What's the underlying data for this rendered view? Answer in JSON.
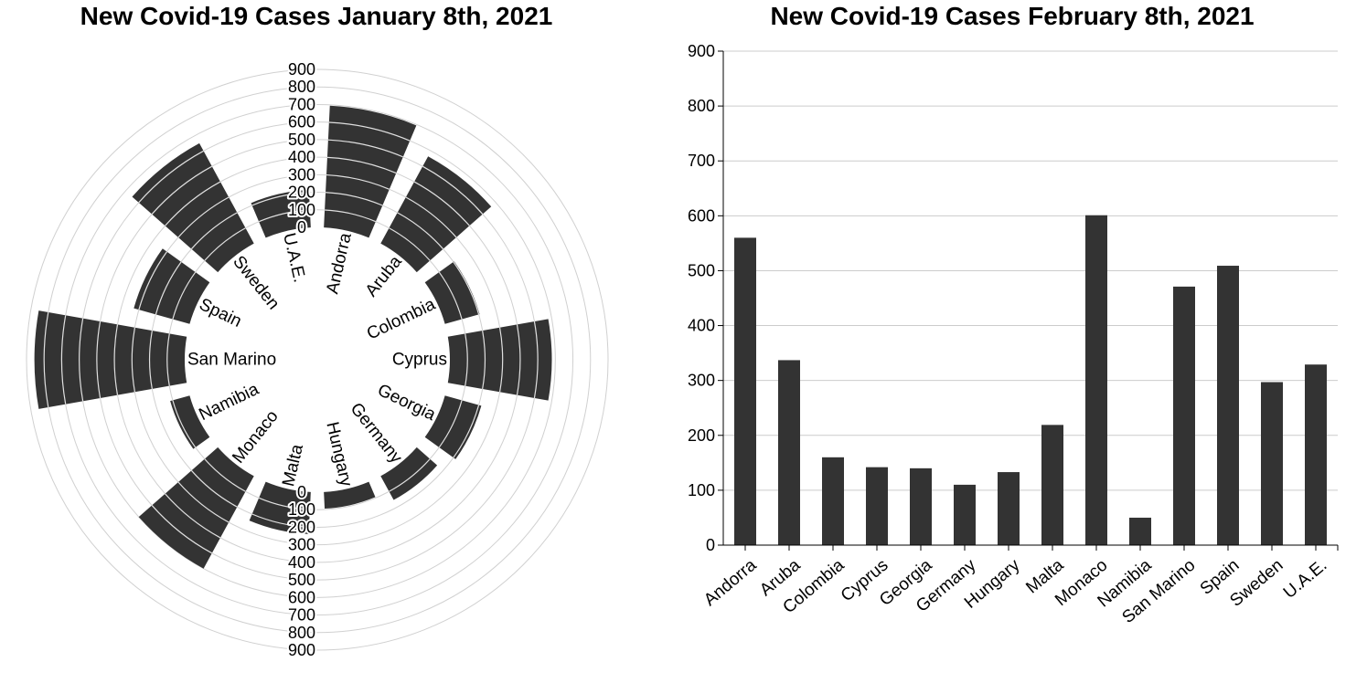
{
  "chart_data": [
    {
      "type": "bar",
      "subtype": "radial",
      "title": "New Covid-19 Cases January 8th, 2021",
      "categories": [
        "Andorra",
        "Aruba",
        "Colombia",
        "Cyprus",
        "Georgia",
        "Germany",
        "Hungary",
        "Malta",
        "Monaco",
        "Namibia",
        "San Marino",
        "Spain",
        "Sweden",
        "U.A.E."
      ],
      "values": [
        695,
        565,
        205,
        580,
        215,
        155,
        95,
        240,
        600,
        115,
        855,
        330,
        650,
        215
      ],
      "ylim": [
        0,
        900
      ],
      "yticks": [
        0,
        100,
        200,
        300,
        400,
        500,
        600,
        700,
        800,
        900
      ],
      "bar_color": "#333333",
      "grid": true
    },
    {
      "type": "bar",
      "title": "New Covid-19 Cases February 8th, 2021",
      "categories": [
        "Andorra",
        "Aruba",
        "Colombia",
        "Cyprus",
        "Georgia",
        "Germany",
        "Hungary",
        "Malta",
        "Monaco",
        "Namibia",
        "San Marino",
        "Spain",
        "Sweden",
        "U.A.E."
      ],
      "values": [
        560,
        337,
        160,
        142,
        140,
        110,
        133,
        219,
        601,
        50,
        471,
        509,
        297,
        329
      ],
      "ylim": [
        0,
        900
      ],
      "yticks": [
        0,
        100,
        200,
        300,
        400,
        500,
        600,
        700,
        800,
        900
      ],
      "bar_color": "#333333",
      "grid": true
    }
  ]
}
